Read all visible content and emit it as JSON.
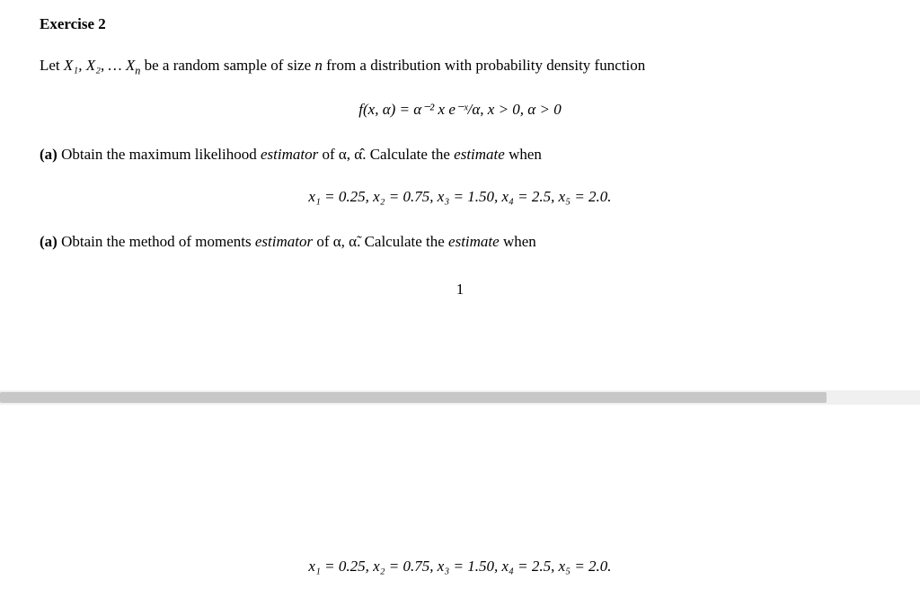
{
  "heading": "Exercise 2",
  "intro_prefix": "Let ",
  "intro_vars": "X₁, X₂, … X",
  "intro_sub_n": "n",
  "intro_mid": " be a random sample of size ",
  "intro_n": "n",
  "intro_suffix": " from a distribution with probability density function",
  "pdf_display": "f(x, α) = α⁻² x e⁻ˣ/α,    x > 0,  α > 0",
  "part_a_label": "(a) ",
  "part_a_text_1": "Obtain the maximum likelihood ",
  "estimator_word": "estimator",
  "part_a_text_2": " of α, α̂.  Calculate the ",
  "estimate_word": "estimate",
  "part_a_text_3": " when",
  "data_line": "x₁ = 0.25,  x₂ = 0.75,  x₃ = 1.50,  x₄ = 2.5,  x₅ = 2.0.",
  "part_b_label": "(a) ",
  "part_b_text_1": "Obtain the method of moments ",
  "part_b_text_2": " of α, α̃.  Calculate the ",
  "part_b_text_3": " when",
  "page_number": "1",
  "data_line_repeat": "x₁ = 0.25,  x₂ = 0.75,  x₃ = 1.50,  x₄ = 2.5,  x₅ = 2.0."
}
